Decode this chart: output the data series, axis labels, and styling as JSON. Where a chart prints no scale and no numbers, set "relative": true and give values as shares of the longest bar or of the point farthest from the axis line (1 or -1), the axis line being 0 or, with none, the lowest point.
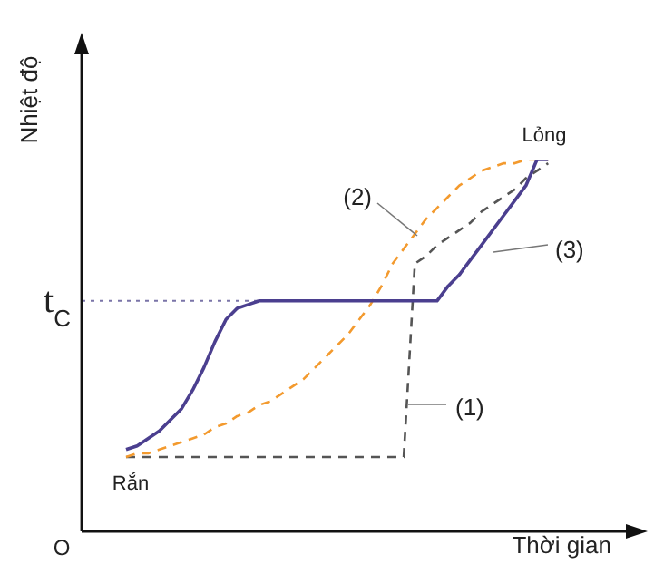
{
  "chart_data": {
    "type": "line",
    "relative": true,
    "xlabel": "Thời gian",
    "ylabel": "Nhiệt độ",
    "categories": [
      null,
      null,
      null,
      null,
      null,
      null,
      null,
      null,
      null,
      null,
      null,
      null,
      null,
      null,
      null,
      null,
      null,
      null,
      null,
      null,
      null,
      null,
      null,
      null,
      null,
      null,
      null,
      null,
      null,
      null,
      null,
      null,
      null,
      null,
      null,
      null,
      null,
      null,
      null,
      null,
      null,
      null,
      null,
      null,
      null,
      null,
      null,
      null,
      null,
      null
    ],
    "series": [
      {
        "color": "#555555",
        "line_style": "dashed",
        "values": [
          null,
          null,
          null,
          null,
          0.2,
          0.2,
          0.2,
          0.2,
          0.2,
          0.2,
          0.2,
          0.2,
          0.2,
          0.2,
          0.2,
          0.2,
          0.2,
          0.2,
          0.2,
          0.2,
          0.2,
          0.2,
          0.2,
          0.2,
          0.2,
          0.2,
          0.2,
          0.2,
          0.2,
          0.2,
          0.72,
          0.74,
          0.77,
          0.79,
          0.81,
          0.83,
          0.86,
          0.88,
          0.9,
          0.92,
          0.95,
          0.97,
          0.99,
          null,
          null,
          null,
          null,
          null,
          null,
          null
        ]
      },
      {
        "color": "#f39a2e",
        "line_style": "dashed",
        "values": [
          null,
          null,
          null,
          null,
          0.2,
          0.21,
          0.21,
          0.22,
          0.23,
          0.24,
          0.25,
          0.26,
          0.28,
          0.29,
          0.31,
          0.32,
          0.34,
          0.35,
          0.37,
          0.39,
          0.41,
          0.44,
          0.47,
          0.5,
          0.53,
          0.57,
          0.61,
          0.66,
          0.72,
          0.76,
          0.8,
          0.84,
          0.87,
          0.9,
          0.93,
          0.95,
          0.97,
          0.98,
          0.99,
          0.99,
          1.0,
          1.0,
          1.0,
          null,
          null,
          null,
          null,
          null,
          null,
          null
        ]
      },
      {
        "color": "#4b3f8f",
        "line_style": "solid",
        "values": [
          null,
          null,
          null,
          null,
          0.22,
          0.23,
          0.25,
          0.27,
          0.3,
          0.33,
          0.38,
          0.44,
          0.51,
          0.57,
          0.6,
          0.61,
          0.62,
          0.62,
          0.62,
          0.62,
          0.62,
          0.62,
          0.62,
          0.62,
          0.62,
          0.62,
          0.62,
          0.62,
          0.62,
          0.62,
          0.62,
          0.62,
          0.62,
          0.66,
          0.69,
          0.73,
          0.77,
          0.81,
          0.85,
          0.89,
          0.93,
          1.0,
          1.0,
          null,
          null,
          null,
          null,
          null,
          null,
          null
        ]
      }
    ],
    "ref_lines": [
      {
        "axis": "y",
        "value": 0.62,
        "label": "t$_{C}$",
        "color": "#7a74a8",
        "line_style": "dotted"
      }
    ],
    "annotations": [
      "O",
      "Rắn",
      "Lỏng",
      "(1)",
      "(2)",
      "(3)"
    ]
  }
}
